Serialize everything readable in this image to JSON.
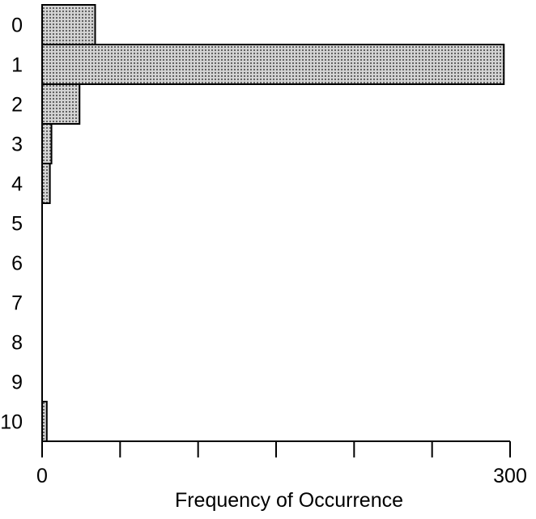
{
  "chart_data": {
    "type": "bar",
    "orientation": "horizontal",
    "categories": [
      "0",
      "1",
      "2",
      "3",
      "4",
      "5",
      "6",
      "7",
      "8",
      "9",
      "10"
    ],
    "values": [
      34,
      296,
      24,
      6,
      5,
      0,
      0,
      0,
      0,
      0,
      3
    ],
    "xlabel": "Frequency of Occurrence",
    "ylabel": "",
    "xlim": [
      0,
      300
    ],
    "x_tick_labels": [
      "0",
      "300"
    ],
    "grid": false,
    "bar_fill": "#bdbdbd",
    "bar_stroke": "#000000"
  }
}
